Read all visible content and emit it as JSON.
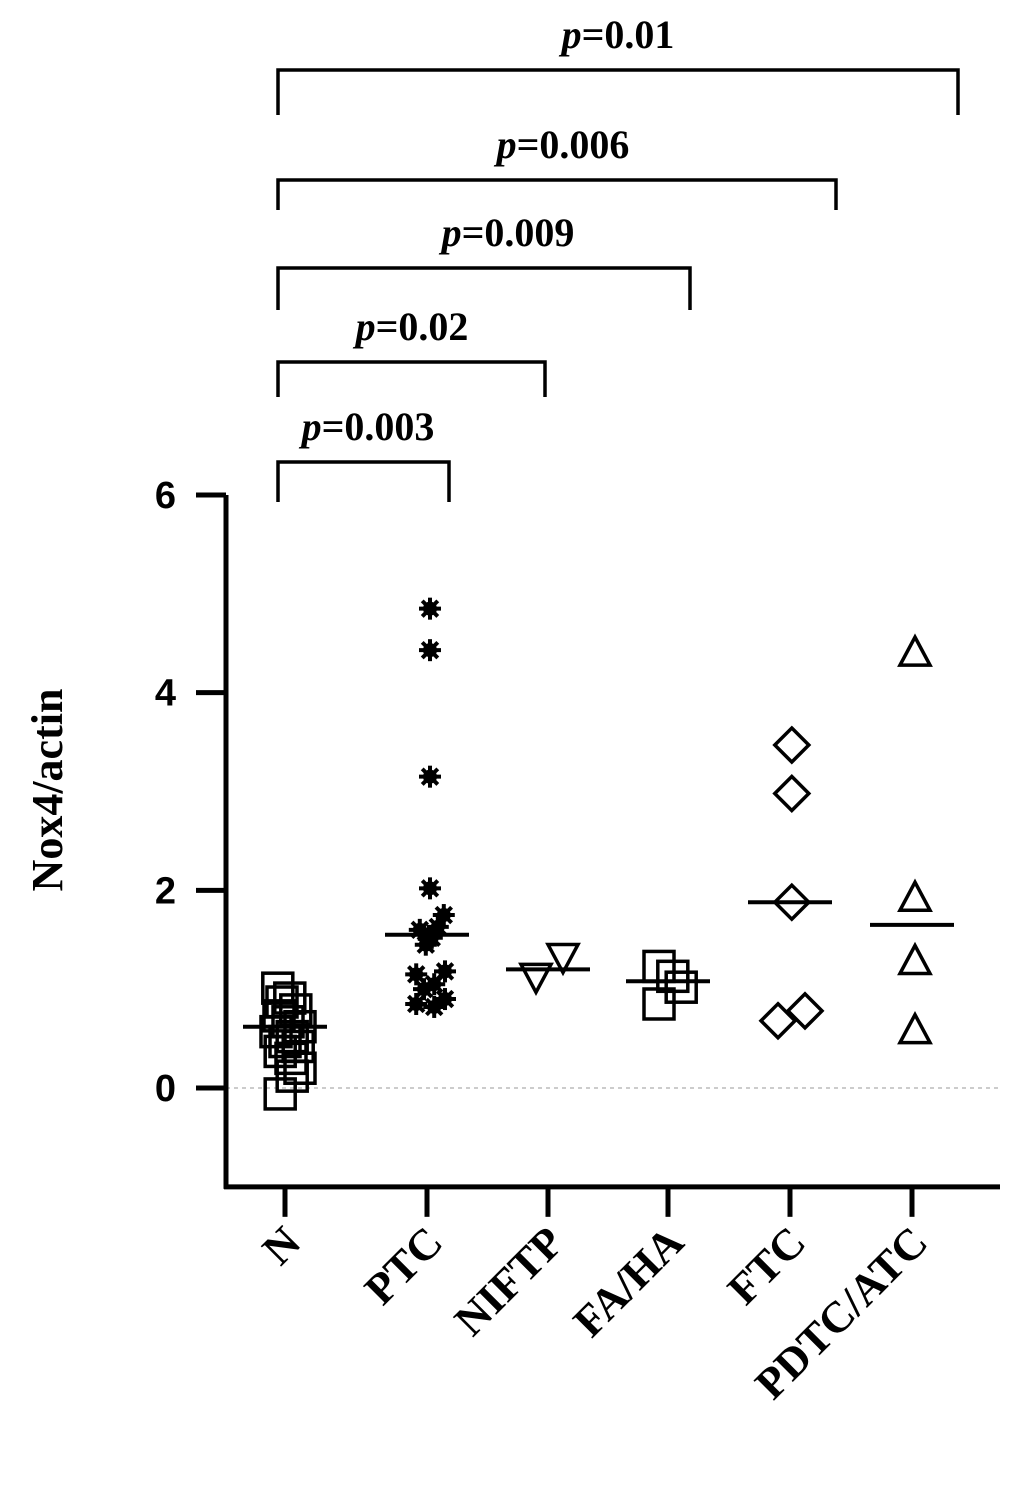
{
  "chart_data": {
    "type": "scatter",
    "ylabel": "Nox4/actin",
    "ylim": [
      -1,
      6
    ],
    "yticks": [
      0,
      2,
      4,
      6
    ],
    "categories": [
      "N",
      "PTC",
      "NIFTP",
      "FA/HA",
      "FTC",
      "PDTC/ATC"
    ],
    "marker_colors": {
      "stroke": "#000000",
      "fill": "#000000",
      "zero_line": "#cccccc"
    },
    "groups": [
      {
        "category": "N",
        "marker": "square",
        "median": 0.62,
        "points": [
          [
            -0.12,
            1.01
          ],
          [
            0.08,
            0.91
          ],
          [
            -0.05,
            0.87
          ],
          [
            0.18,
            0.79
          ],
          [
            -0.1,
            0.73
          ],
          [
            0.05,
            0.67
          ],
          [
            0.25,
            0.62
          ],
          [
            -0.15,
            0.57
          ],
          [
            0.12,
            0.52
          ],
          [
            0.0,
            0.47
          ],
          [
            0.22,
            0.42
          ],
          [
            -0.08,
            0.37
          ],
          [
            0.1,
            0.3
          ],
          [
            0.25,
            0.2
          ],
          [
            0.12,
            0.12
          ],
          [
            -0.08,
            -0.06
          ]
        ]
      },
      {
        "category": "PTC",
        "marker": "asterisk",
        "median": 1.55,
        "points": [
          [
            0.05,
            4.85
          ],
          [
            0.05,
            4.43
          ],
          [
            0.05,
            3.15
          ],
          [
            0.05,
            2.02
          ],
          [
            0.28,
            1.75
          ],
          [
            0.18,
            1.63
          ],
          [
            -0.12,
            1.6
          ],
          [
            0.08,
            1.52
          ],
          [
            -0.02,
            1.45
          ],
          [
            0.3,
            1.18
          ],
          [
            -0.18,
            1.15
          ],
          [
            0.12,
            1.05
          ],
          [
            -0.05,
            1.0
          ],
          [
            0.3,
            0.9
          ],
          [
            -0.18,
            0.85
          ],
          [
            0.12,
            0.82
          ]
        ]
      },
      {
        "category": "NIFTP",
        "marker": "triangle-down",
        "median": 1.2,
        "points": [
          [
            -0.2,
            1.13
          ],
          [
            0.25,
            1.33
          ]
        ]
      },
      {
        "category": "FA/HA",
        "marker": "square",
        "median": 1.08,
        "points": [
          [
            -0.15,
            1.23
          ],
          [
            0.08,
            1.13
          ],
          [
            0.22,
            1.02
          ],
          [
            -0.15,
            0.85
          ]
        ]
      },
      {
        "category": "FTC",
        "marker": "diamond",
        "median": 1.88,
        "points": [
          [
            0.03,
            3.47
          ],
          [
            0.03,
            2.98
          ],
          [
            0.03,
            1.88
          ],
          [
            -0.2,
            0.68
          ],
          [
            0.25,
            0.78
          ]
        ]
      },
      {
        "category": "PDTC/ATC",
        "marker": "triangle-up",
        "median": 1.65,
        "points": [
          [
            0.05,
            4.4
          ],
          [
            0.05,
            1.92
          ],
          [
            0.05,
            1.28
          ],
          [
            0.05,
            0.58
          ]
        ]
      }
    ],
    "comparisons": [
      {
        "from": "N",
        "to": "PTC",
        "p_prefix": "p",
        "p_value": "=0.003"
      },
      {
        "from": "N",
        "to": "NIFTP",
        "p_prefix": "p",
        "p_value": "=0.02"
      },
      {
        "from": "N",
        "to": "FA/HA",
        "p_prefix": "p",
        "p_value": "=0.009"
      },
      {
        "from": "N",
        "to": "FTC",
        "p_prefix": "p",
        "p_value": "=0.006"
      },
      {
        "from": "N",
        "to": "PDTC/ATC",
        "p_prefix": "p",
        "p_value": "=0.01"
      }
    ]
  }
}
